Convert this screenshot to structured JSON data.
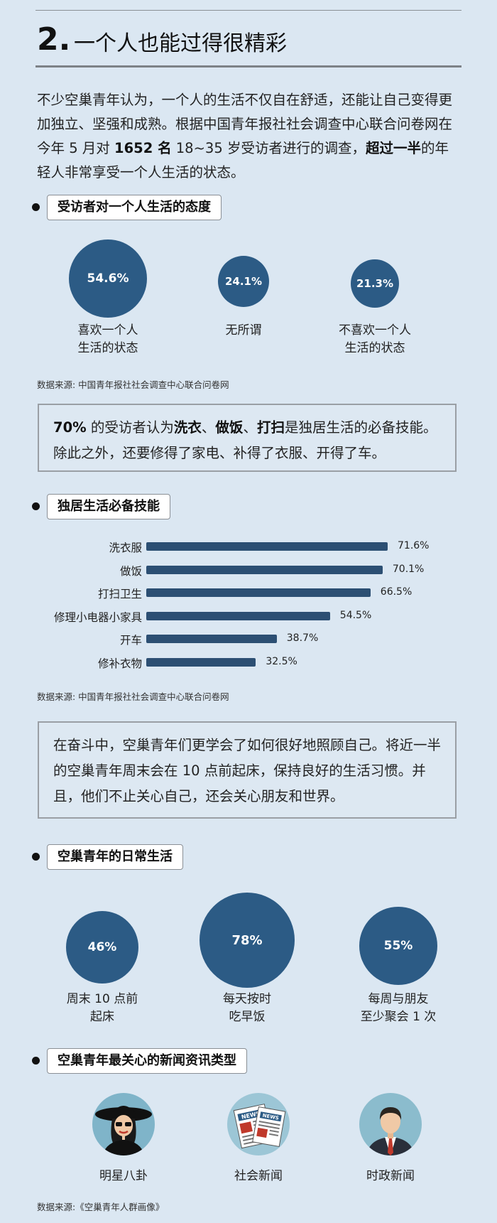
{
  "header": {
    "number": "2.",
    "title": "一个人也能过得很精彩"
  },
  "intro": {
    "p1": "不少空巢青年认为，一个人的生活不仅自在舒适，还能让自己变得更加独立、坚强和成熟。根据中国青年报社社会调查中心联合问卷网在今年 5 月对 ",
    "count": "1652 名",
    "p2": " 18~35 岁受访者进行的调查，",
    "bold2": "超过一半",
    "p3": "的年轻人非常享受一个人生活的状态。"
  },
  "section1": {
    "label": "受访者对一个人生活的态度",
    "items": [
      {
        "value": "54.6%",
        "caption": "喜欢一个人\n生活的状态"
      },
      {
        "value": "24.1%",
        "caption": "无所谓"
      },
      {
        "value": "21.3%",
        "caption": "不喜欢一个人\n生活的状态"
      }
    ],
    "source": "数据来源: 中国青年报社社会调查中心联合问卷网"
  },
  "callout1": {
    "b1": "70%",
    "t1": " 的受访者认为",
    "b2": "洗衣",
    "t2": "、",
    "b3": "做饭",
    "t3": "、",
    "b4": "打扫",
    "t4": "是独居生活的必备技能。除此之外，还要修得了家电、补得了衣服、开得了车。"
  },
  "section2": {
    "label": "独居生活必备技能",
    "source": "数据来源: 中国青年报社社会调查中心联合问卷网"
  },
  "chart_data": {
    "type": "bar",
    "orientation": "horizontal",
    "categories": [
      "洗衣服",
      "做饭",
      "打扫卫生",
      "修理小电器小家具",
      "开车",
      "修补衣物"
    ],
    "values": [
      71.6,
      70.1,
      66.5,
      54.5,
      38.7,
      32.5
    ],
    "value_labels": [
      "71.6%",
      "70.1%",
      "66.5%",
      "54.5%",
      "38.7%",
      "32.5%"
    ],
    "title": "独居生活必备技能",
    "xlim": [
      0,
      100
    ],
    "color": "#2c4f73",
    "grid": false
  },
  "callout2": {
    "text": "在奋斗中，空巢青年们更学会了如何很好地照顾自己。将近一半的空巢青年周末会在 10 点前起床，保持良好的生活习惯。并且，他们不止关心自己，还会关心朋友和世界。"
  },
  "section3": {
    "label": "空巢青年的日常生活",
    "items": [
      {
        "value": "46%",
        "caption": "周末 10 点前\n起床"
      },
      {
        "value": "78%",
        "caption": "每天按时\n吃早饭"
      },
      {
        "value": "55%",
        "caption": "每周与朋友\n至少聚会 1 次"
      }
    ]
  },
  "section4": {
    "label": "空巢青年最关心的新闻资讯类型",
    "items": [
      {
        "icon": "celebrity-icon",
        "caption": "明星八卦"
      },
      {
        "icon": "newspaper-icon",
        "caption": "社会新闻"
      },
      {
        "icon": "politician-icon",
        "caption": "时政新闻"
      }
    ],
    "newspaper_word": "NEWS",
    "source": "数据来源:《空巢青年人群画像》"
  },
  "colors": {
    "bubble": "#2c5b85",
    "bar": "#2c4f73",
    "background": "#dbe7f2"
  }
}
